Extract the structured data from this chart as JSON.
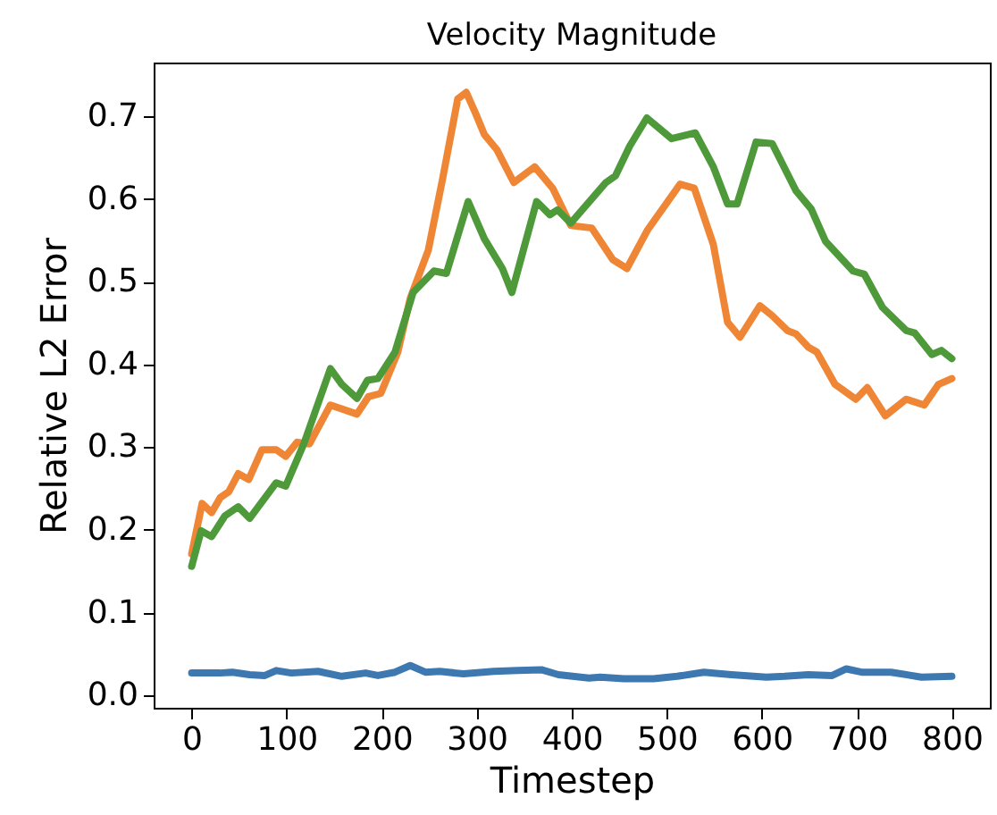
{
  "chart_data": {
    "type": "line",
    "title": "Velocity Magnitude",
    "xlabel": "Timestep",
    "ylabel": "Relative L2 Error",
    "xlim": [
      -40,
      840
    ],
    "ylim": [
      -0.015,
      0.765
    ],
    "xticks": [
      0,
      100,
      200,
      300,
      400,
      500,
      600,
      700,
      800
    ],
    "yticks": [
      {
        "value": 0,
        "label": "0.0"
      },
      0.1,
      0.2,
      0.3,
      0.4,
      0.5,
      0.6,
      0.7
    ],
    "grid": false,
    "legend": false,
    "line_style": "solid",
    "marker": "none",
    "series": [
      {
        "color": "#3d78b0",
        "x": [
          0,
          30,
          43,
          61,
          77,
          89,
          105,
          133,
          158,
          183,
          196,
          214,
          230,
          246,
          261,
          286,
          318,
          343,
          368,
          386,
          418,
          430,
          455,
          486,
          511,
          539,
          568,
          605,
          624,
          649,
          674,
          689,
          705,
          736,
          768,
          800
        ],
        "values": [
          0.027,
          0.027,
          0.028,
          0.025,
          0.024,
          0.03,
          0.027,
          0.029,
          0.023,
          0.027,
          0.024,
          0.028,
          0.036,
          0.028,
          0.029,
          0.026,
          0.029,
          0.03,
          0.031,
          0.025,
          0.021,
          0.022,
          0.02,
          0.02,
          0.023,
          0.028,
          0.025,
          0.022,
          0.023,
          0.025,
          0.024,
          0.032,
          0.028,
          0.028,
          0.022,
          0.023
        ]
      },
      {
        "color": "#ef8635",
        "x": [
          0,
          11,
          21,
          30,
          39,
          49,
          60,
          74,
          89,
          99,
          111,
          124,
          146,
          174,
          186,
          199,
          217,
          230,
          249,
          264,
          280,
          289,
          299,
          308,
          321,
          339,
          361,
          380,
          399,
          421,
          443,
          458,
          480,
          514,
          529,
          549,
          564,
          577,
          598,
          611,
          627,
          636,
          649,
          658,
          677,
          699,
          711,
          730,
          752,
          771,
          786,
          800
        ],
        "values": [
          0.171,
          0.232,
          0.221,
          0.239,
          0.246,
          0.268,
          0.261,
          0.297,
          0.297,
          0.289,
          0.306,
          0.304,
          0.351,
          0.34,
          0.361,
          0.365,
          0.415,
          0.48,
          0.538,
          0.624,
          0.721,
          0.729,
          0.703,
          0.678,
          0.66,
          0.62,
          0.639,
          0.613,
          0.568,
          0.565,
          0.527,
          0.516,
          0.563,
          0.618,
          0.613,
          0.545,
          0.451,
          0.433,
          0.471,
          0.459,
          0.441,
          0.437,
          0.421,
          0.415,
          0.376,
          0.358,
          0.372,
          0.338,
          0.358,
          0.351,
          0.376,
          0.383
        ]
      },
      {
        "color": "#4e9a3a",
        "x": [
          0,
          10,
          21,
          35,
          49,
          61,
          89,
          99,
          118,
          146,
          158,
          174,
          185,
          196,
          214,
          233,
          255,
          268,
          291,
          308,
          327,
          337,
          349,
          363,
          377,
          385,
          399,
          436,
          446,
          461,
          479,
          505,
          530,
          549,
          564,
          574,
          594,
          611,
          636,
          652,
          667,
          696,
          708,
          727,
          752,
          761,
          779,
          789,
          800
        ],
        "values": [
          0.156,
          0.199,
          0.192,
          0.217,
          0.228,
          0.214,
          0.257,
          0.253,
          0.304,
          0.395,
          0.376,
          0.359,
          0.381,
          0.383,
          0.415,
          0.487,
          0.513,
          0.51,
          0.597,
          0.552,
          0.516,
          0.487,
          0.538,
          0.597,
          0.581,
          0.587,
          0.571,
          0.62,
          0.628,
          0.664,
          0.698,
          0.673,
          0.68,
          0.639,
          0.594,
          0.594,
          0.669,
          0.667,
          0.61,
          0.588,
          0.549,
          0.513,
          0.509,
          0.469,
          0.441,
          0.438,
          0.412,
          0.417,
          0.407
        ]
      }
    ]
  }
}
